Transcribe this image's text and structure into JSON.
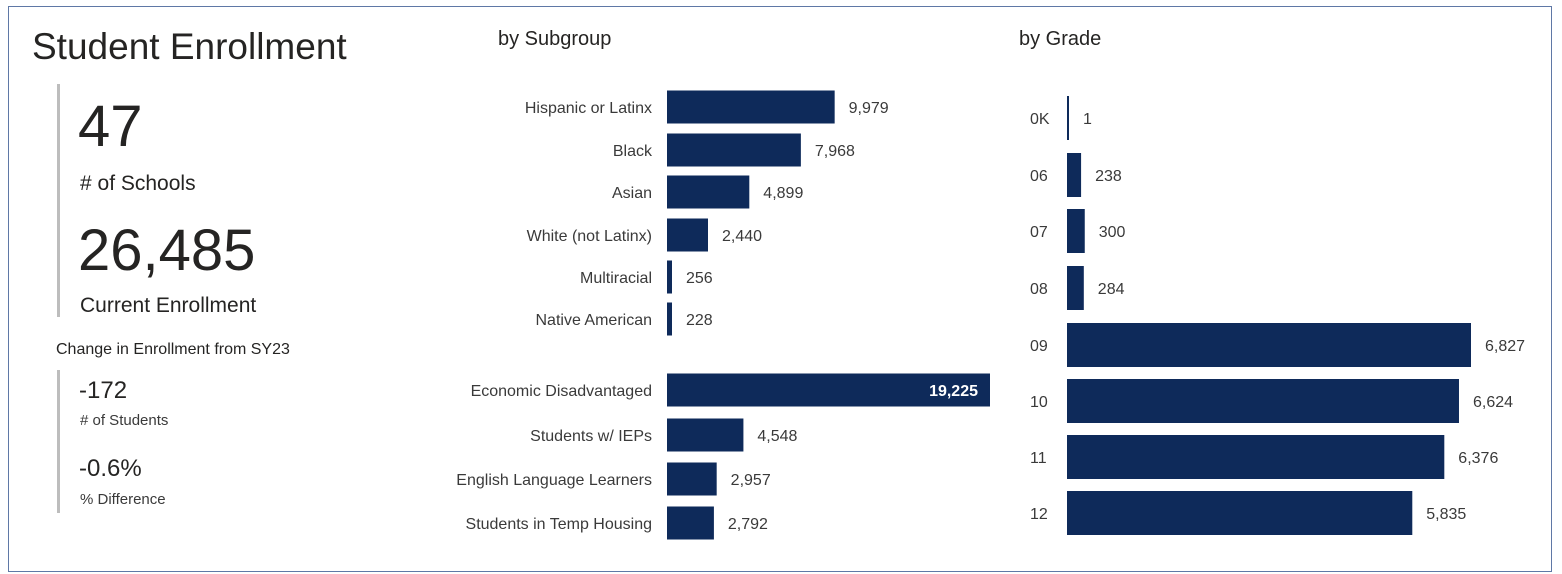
{
  "summary": {
    "title": "Student Enrollment",
    "schools_value": "47",
    "schools_label": "# of Schools",
    "enrollment_value": "26,485",
    "enrollment_label": "Current Enrollment",
    "change_heading": "Change in Enrollment from SY23",
    "change_students_value": "-172",
    "change_students_label": "# of Students",
    "change_pct_value": "-0.6%",
    "change_pct_label": "% Difference"
  },
  "colors": {
    "bar": "#0e2a5a",
    "inside_label": "#ffffff",
    "outside_label": "#3a3a3a",
    "category_label": "#3a3a3a"
  },
  "chart_data": [
    {
      "type": "bar",
      "orientation": "horizontal",
      "title": "by Subgroup",
      "xlim": [
        0,
        19225
      ],
      "groups": [
        {
          "categories": [
            "Hispanic or Latinx",
            "Black",
            "Asian",
            "White (not Latinx)",
            "Multiracial",
            "Native American"
          ],
          "values": [
            9979,
            7968,
            4899,
            2440,
            256,
            228
          ],
          "labels": [
            "9,979",
            "7,968",
            "4,899",
            "2,440",
            "256",
            "228"
          ]
        },
        {
          "categories": [
            "Economic Disadvantaged",
            "Students w/ IEPs",
            "English Language Learners",
            "Students in Temp Housing"
          ],
          "values": [
            19225,
            4548,
            2957,
            2792
          ],
          "labels": [
            "19,225",
            "4,548",
            "2,957",
            "2,792"
          ]
        }
      ]
    },
    {
      "type": "bar",
      "orientation": "horizontal",
      "title": "by Grade",
      "xlim": [
        0,
        6827
      ],
      "categories": [
        "0K",
        "06",
        "07",
        "08",
        "09",
        "10",
        "11",
        "12"
      ],
      "values": [
        1,
        238,
        300,
        284,
        6827,
        6624,
        6376,
        5835
      ],
      "labels": [
        "1",
        "238",
        "300",
        "284",
        "6,827",
        "6,624",
        "6,376",
        "5,835"
      ]
    }
  ]
}
